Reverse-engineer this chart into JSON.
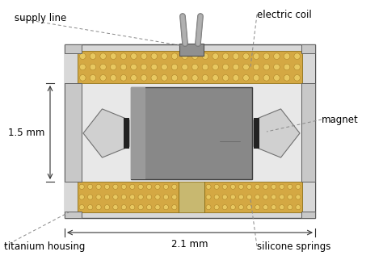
{
  "bg_color": "#ffffff",
  "housing_color": "#c8c8c8",
  "housing_light": "#d8d8d8",
  "housing_dark": "#a0a0a0",
  "coil_color": "#d4a843",
  "coil_dot_fg": "#e8c860",
  "coil_dot_edge": "#a07820",
  "magnet_color": "#888888",
  "wire_color": "#888888",
  "wire_dark": "#666666",
  "connector_color": "#909090",
  "spring_color": "#d0d0d0",
  "gap_color": "#222222",
  "black": "#000000",
  "dim_line_color": "#333333",
  "label_supply_line": "supply line",
  "label_electric_coil": "electric coil",
  "label_magnet": "magnet",
  "label_titanium_housing": "titanium housing",
  "label_silicone_springs": "silicone springs",
  "dim_15mm": "1.5 mm",
  "dim_21mm": "2.1 mm",
  "fontsize": 8.5
}
